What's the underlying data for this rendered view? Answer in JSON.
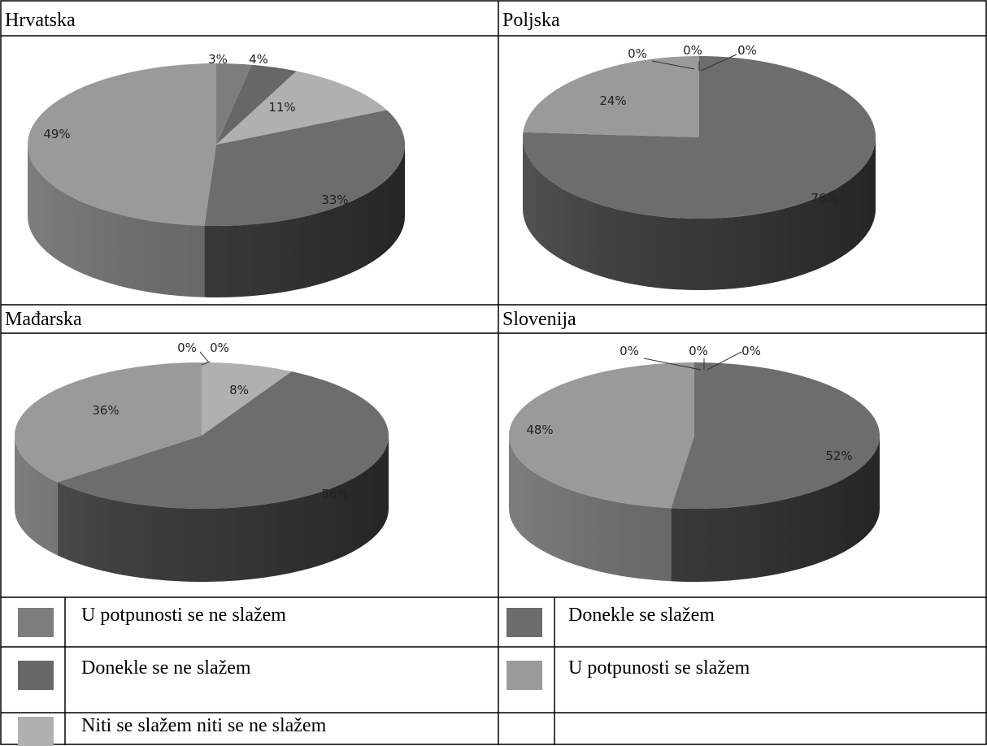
{
  "colors": {
    "cat1": "#7d7d7d",
    "cat2": "#6a6a6a",
    "cat3": "#b3b3b3",
    "cat4": "#727272",
    "cat5": "#a6a6a6"
  },
  "legend": [
    {
      "label": "U potpunosti se ne slažem",
      "color": "#7d7d7d"
    },
    {
      "label": "Donekle se ne slažem",
      "color": "#676767"
    },
    {
      "label": "Niti se slažem niti se ne slažem",
      "color": "#b0b0b0"
    },
    {
      "label": "Donekle se slažem",
      "color": "#6c6c6c"
    },
    {
      "label": "U potpunosti se slažem",
      "color": "#9a9a9a"
    }
  ],
  "chart_data": [
    {
      "type": "pie",
      "title": "Hrvatska",
      "categories": [
        "U potpunosti se ne slažem",
        "Donekle se ne slažem",
        "Niti se slažem niti se ne slažem",
        "Donekle se slažem",
        "U potpunosti se slažem"
      ],
      "values": [
        3,
        4,
        11,
        33,
        49
      ],
      "labels": [
        "3%",
        "4%",
        "11%",
        "33%",
        "49%"
      ]
    },
    {
      "type": "pie",
      "title": "Poljska",
      "categories": [
        "U potpunosti se ne slažem",
        "Donekle se ne slažem",
        "Niti se slažem niti se ne slažem",
        "Donekle se slažem",
        "U potpunosti se slažem"
      ],
      "values": [
        0,
        0,
        0,
        76,
        24
      ],
      "labels": [
        "0%",
        "0%",
        "0%",
        "76%",
        "24%"
      ]
    },
    {
      "type": "pie",
      "title": "Mađarska",
      "categories": [
        "U potpunosti se ne slažem",
        "Donekle se ne slažem",
        "Niti se slažem niti se ne slažem",
        "Donekle se slažem",
        "U potpunosti se slažem"
      ],
      "values": [
        0,
        0,
        8,
        56,
        36
      ],
      "labels": [
        "0%",
        "0%",
        "8%",
        "56%",
        "36%"
      ]
    },
    {
      "type": "pie",
      "title": "Slovenija",
      "categories": [
        "U potpunosti se ne slažem",
        "Donekle se ne slažem",
        "Niti se slažem niti se ne slažem",
        "Donekle se slažem",
        "U potpunosti se slažem"
      ],
      "values": [
        0,
        0,
        0,
        52,
        48
      ],
      "labels": [
        "0%",
        "0%",
        "0%",
        "52%",
        "48%"
      ]
    }
  ]
}
